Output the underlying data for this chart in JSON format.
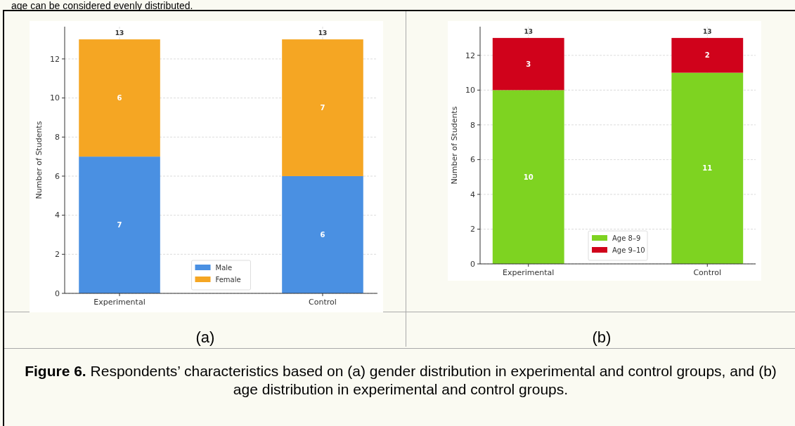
{
  "chart_data": [
    {
      "type": "bar",
      "subtitle": "(a)",
      "ylabel": "Number of Students",
      "categories": [
        "Experimental",
        "Control"
      ],
      "stacked": true,
      "series": [
        {
          "name": "Male",
          "color": "#4a90e2",
          "values": [
            7,
            6
          ]
        },
        {
          "name": "Female",
          "color": "#f5a623",
          "values": [
            6,
            7
          ]
        }
      ],
      "ylim": [
        0,
        13.65
      ],
      "yticks": [
        0,
        2,
        4,
        6,
        8,
        10,
        12
      ],
      "grid": true,
      "legend": "bottom",
      "data_labels": true,
      "totals": [
        "13",
        "13"
      ],
      "annotations": [
        "age can be considered evenly distributed.",
        "Figure 6.",
        "Respondents’ characteristics based on (a) gender distribution in experimental and control groups, and (b) age distribution in experimental and control groups."
      ]
    },
    {
      "type": "bar",
      "subtitle": "(b)",
      "ylabel": "Number of Students",
      "categories": [
        "Experimental",
        "Control"
      ],
      "stacked": true,
      "series": [
        {
          "name": "Age 8–9",
          "color": "#7ed321",
          "values": [
            10,
            11
          ]
        },
        {
          "name": "Age 9–10",
          "color": "#d0021b",
          "values": [
            3,
            2
          ]
        }
      ],
      "ylim": [
        0,
        13.65
      ],
      "yticks": [
        0,
        2,
        4,
        6,
        8,
        10,
        12
      ],
      "grid": true,
      "legend": "bottom",
      "data_labels": true,
      "totals": [
        "13",
        "13"
      ]
    }
  ]
}
